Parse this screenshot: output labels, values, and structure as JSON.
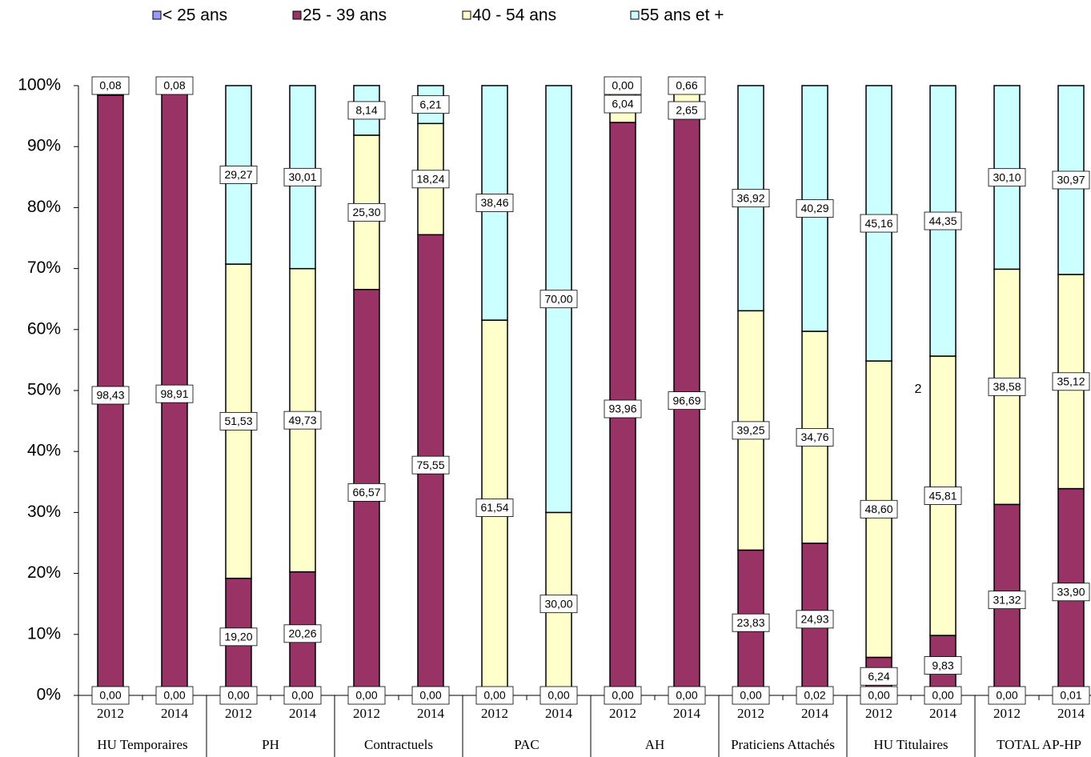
{
  "chart_data": {
    "type": "stacked-bar",
    "annotation": "2",
    "groups": [
      "HU Temporaires",
      "PH",
      "Contractuels",
      "PAC",
      "AH",
      "Praticiens Attachés",
      "HU Titulaires",
      "TOTAL AP-HP"
    ],
    "categories": [
      "2012",
      "2014",
      "2012",
      "2014",
      "2012",
      "2014",
      "2012",
      "2014",
      "2012",
      "2014",
      "2012",
      "2014",
      "2012",
      "2014",
      "2012",
      "2014"
    ],
    "ylim": [
      0,
      100
    ],
    "yticks": [
      {
        "value": 0,
        "label": "0%"
      },
      {
        "value": 10,
        "label": "10%"
      },
      {
        "value": 20,
        "label": "20%"
      },
      {
        "value": 30,
        "label": "30%"
      },
      {
        "value": 40,
        "label": "40%"
      },
      {
        "value": 50,
        "label": "50%"
      },
      {
        "value": 60,
        "label": "60%"
      },
      {
        "value": 70,
        "label": "70%"
      },
      {
        "value": 80,
        "label": "80%"
      },
      {
        "value": 90,
        "label": "90%"
      },
      {
        "value": 100,
        "label": "100%"
      }
    ],
    "series": [
      {
        "name": "< 25 ans",
        "color": "#9999ff",
        "values": [
          0,
          0,
          0,
          0,
          0,
          0,
          0,
          0,
          0,
          0,
          0,
          0.02,
          0,
          0,
          0,
          0.01
        ],
        "value_labels": [
          "0,00",
          "0,00",
          "0,00",
          "0,00",
          "0,00",
          "0,00",
          "0,00",
          "0,00",
          "0,00",
          "0,00",
          "0,00",
          "0,02",
          "0,00",
          "0,00",
          "0,00",
          "0,01"
        ]
      },
      {
        "name": "25 - 39 ans",
        "color": "#993366",
        "values": [
          98.43,
          98.91,
          19.2,
          20.26,
          66.57,
          75.55,
          0,
          0,
          93.96,
          96.69,
          23.83,
          24.93,
          6.24,
          9.83,
          31.32,
          33.9
        ],
        "value_labels": [
          "98,43",
          "98,91",
          "19,20",
          "20,26",
          "66,57",
          "75,55",
          null,
          null,
          "93,96",
          "96,69",
          "23,83",
          "24,93",
          "6,24",
          "9,83",
          "31,32",
          "33,90"
        ]
      },
      {
        "name": "40 - 54 ans",
        "color": "#ffffcc",
        "values": [
          1.49,
          1.01,
          51.53,
          49.73,
          25.3,
          18.24,
          61.54,
          30,
          6.04,
          2.65,
          39.25,
          34.76,
          48.6,
          45.81,
          38.58,
          35.12
        ],
        "value_labels": [
          null,
          null,
          "51,53",
          "49,73",
          "25,30",
          "18,24",
          "61,54",
          "30,00",
          "6,04",
          "2,65",
          "39,25",
          "34,76",
          "48,60",
          "45,81",
          "38,58",
          "35,12"
        ]
      },
      {
        "name": "55 ans et +",
        "color": "#ccffff",
        "values": [
          0.08,
          0.08,
          29.27,
          30.01,
          8.14,
          6.21,
          38.46,
          70,
          0,
          0.66,
          36.92,
          40.29,
          45.16,
          44.35,
          30.1,
          30.97
        ],
        "value_labels": [
          "0,08",
          "0,08",
          "29,27",
          "30,01",
          "8,14",
          "6,21",
          "38,46",
          "70,00",
          "0,00",
          "0,66",
          "36,92",
          "40,29",
          "45,16",
          "44,35",
          "30,10",
          "30,97"
        ]
      }
    ]
  }
}
